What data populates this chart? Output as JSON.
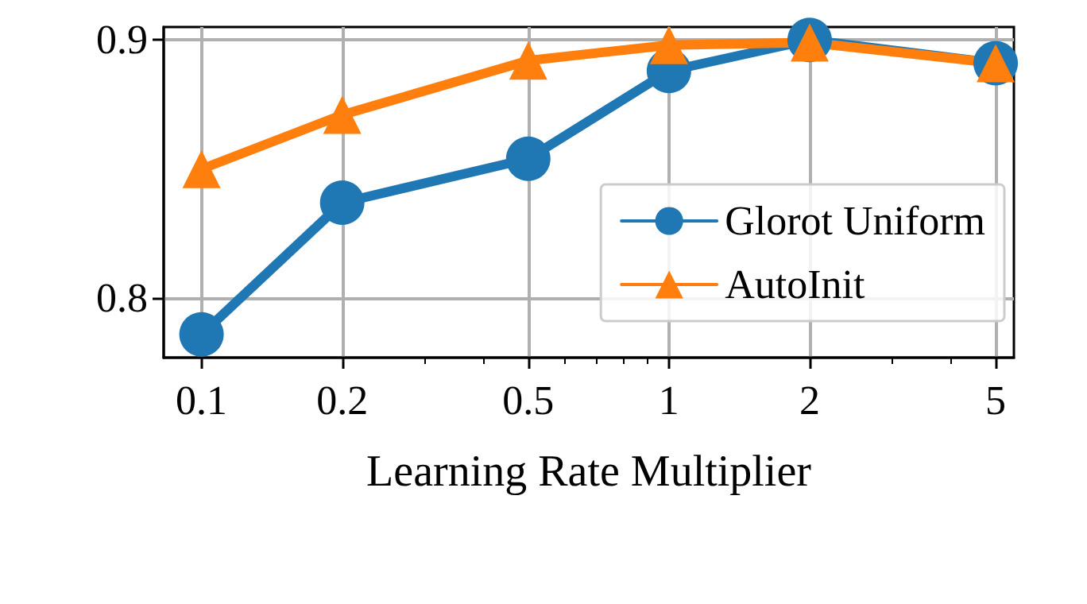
{
  "chart_data": {
    "type": "line",
    "xlabel": "Learning Rate Multiplier",
    "log": "x",
    "grid": true,
    "legend": "bottom right",
    "line_style": "solid",
    "x": [
      0.1,
      0.2,
      0.5,
      1,
      2,
      5
    ],
    "xlim": [
      0.083,
      5.47
    ],
    "xticks": [
      0.1,
      0.2,
      {
        "value": 0.3,
        "label": null
      },
      {
        "value": 0.4,
        "label": null
      },
      0.5,
      {
        "value": 0.6,
        "label": null
      },
      {
        "value": 0.7,
        "label": null
      },
      {
        "value": 0.8,
        "label": null
      },
      {
        "value": 0.9,
        "label": null
      },
      1,
      2,
      {
        "value": 3,
        "label": null
      },
      {
        "value": 4,
        "label": null
      },
      5
    ],
    "ylim": [
      0.777,
      0.905
    ],
    "yticks": [
      0.8,
      0.9
    ],
    "series": [
      {
        "name": "Glorot Uniform",
        "color": "#1f77b4",
        "marker": "circle",
        "values": [
          0.786,
          0.837,
          0.854,
          0.888,
          0.9,
          0.891
        ]
      },
      {
        "name": "AutoInit",
        "color": "#ff7f0e",
        "marker": "triangle",
        "values": [
          0.85,
          0.871,
          0.892,
          0.898,
          0.899,
          0.891
        ]
      }
    ]
  }
}
